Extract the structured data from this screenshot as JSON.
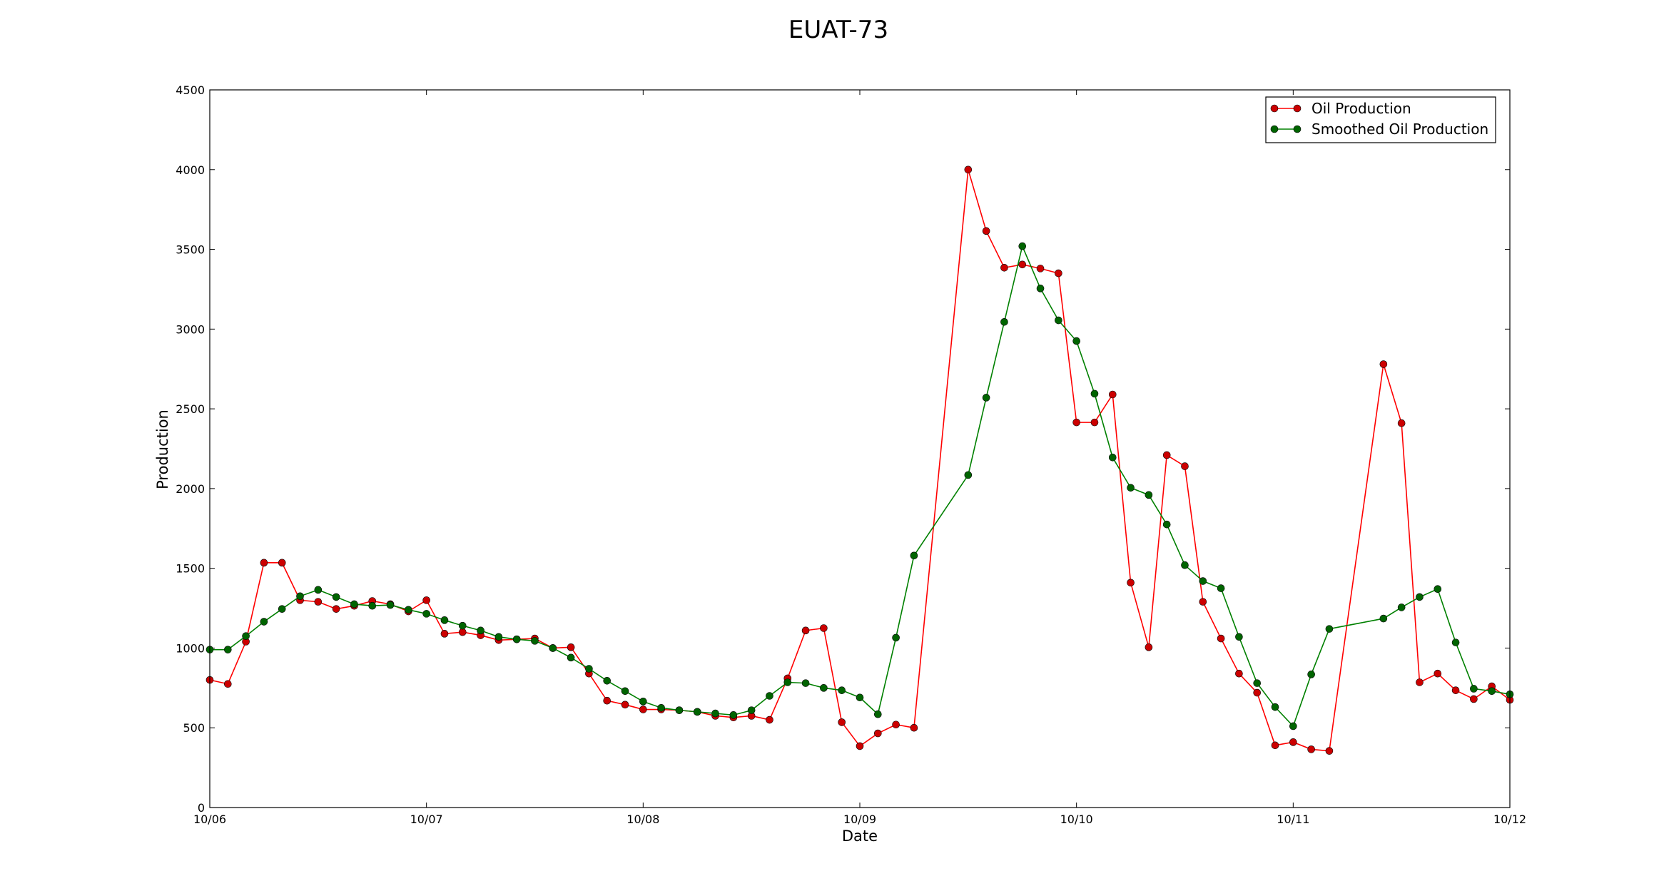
{
  "chart_data": {
    "type": "line",
    "title": "EUAT-73",
    "xlabel": "Date",
    "ylabel": "Production",
    "xlim": [
      "2014-10-06",
      "2014-10-12"
    ],
    "ylim": [
      0,
      4500
    ],
    "x_tick_labels": [
      "10/06",
      "10/07",
      "10/08",
      "10/09",
      "10/10",
      "10/11",
      "10/12"
    ],
    "y_ticks": [
      0,
      500,
      1000,
      1500,
      2000,
      2500,
      3000,
      3500,
      4000,
      4500
    ],
    "legend_position": "top-right",
    "grid": false,
    "series": [
      {
        "name": "Oil Production",
        "color": "#ff0000",
        "marker_color": "#cc0000",
        "x": [
          "2014-10-06 00:00",
          "2014-10-06 02:00",
          "2014-10-06 04:00",
          "2014-10-06 06:00",
          "2014-10-06 08:00",
          "2014-10-06 10:00",
          "2014-10-06 12:00",
          "2014-10-06 14:00",
          "2014-10-06 16:00",
          "2014-10-06 18:00",
          "2014-10-06 20:00",
          "2014-10-06 22:00",
          "2014-10-07 00:00",
          "2014-10-07 02:00",
          "2014-10-07 04:00",
          "2014-10-07 06:00",
          "2014-10-07 08:00",
          "2014-10-07 10:00",
          "2014-10-07 12:00",
          "2014-10-07 14:00",
          "2014-10-07 16:00",
          "2014-10-07 18:00",
          "2014-10-07 20:00",
          "2014-10-07 22:00",
          "2014-10-08 00:00",
          "2014-10-08 02:00",
          "2014-10-08 04:00",
          "2014-10-08 06:00",
          "2014-10-08 08:00",
          "2014-10-08 10:00",
          "2014-10-08 12:00",
          "2014-10-08 14:00",
          "2014-10-08 16:00",
          "2014-10-08 18:00",
          "2014-10-08 20:00",
          "2014-10-08 22:00",
          "2014-10-09 00:00",
          "2014-10-09 02:00",
          "2014-10-09 04:00",
          "2014-10-09 06:00",
          "2014-10-09 12:00",
          "2014-10-09 14:00",
          "2014-10-09 16:00",
          "2014-10-09 18:00",
          "2014-10-09 20:00",
          "2014-10-09 22:00",
          "2014-10-10 00:00",
          "2014-10-10 02:00",
          "2014-10-10 04:00",
          "2014-10-10 06:00",
          "2014-10-10 08:00",
          "2014-10-10 10:00",
          "2014-10-10 12:00",
          "2014-10-10 14:00",
          "2014-10-10 16:00",
          "2014-10-10 18:00",
          "2014-10-10 20:00",
          "2014-10-10 22:00",
          "2014-10-11 00:00",
          "2014-10-11 02:00",
          "2014-10-11 04:00",
          "2014-10-11 10:00",
          "2014-10-11 12:00",
          "2014-10-11 14:00",
          "2014-10-11 16:00",
          "2014-10-11 18:00",
          "2014-10-11 20:00",
          "2014-10-11 22:00",
          "2014-10-12 00:00"
        ],
        "values": [
          800,
          775,
          1040,
          1535,
          1535,
          1300,
          1290,
          1245,
          1265,
          1295,
          1275,
          1230,
          1300,
          1090,
          1100,
          1080,
          1050,
          1055,
          1060,
          1000,
          1005,
          840,
          670,
          645,
          615,
          615,
          610,
          600,
          575,
          565,
          575,
          550,
          810,
          1110,
          1125,
          535,
          385,
          465,
          520,
          500,
          4000,
          3615,
          3385,
          3405,
          3380,
          3350,
          2415,
          2415,
          2590,
          1410,
          1005,
          2210,
          2140,
          1290,
          1060,
          840,
          720,
          390,
          410,
          365,
          355,
          2780,
          2410,
          785,
          840,
          735,
          680,
          760,
          675
        ]
      },
      {
        "name": "Smoothed Oil Production",
        "color": "#008000",
        "marker_color": "#006400",
        "x": [
          "2014-10-06 00:00",
          "2014-10-06 02:00",
          "2014-10-06 04:00",
          "2014-10-06 06:00",
          "2014-10-06 08:00",
          "2014-10-06 10:00",
          "2014-10-06 12:00",
          "2014-10-06 14:00",
          "2014-10-06 16:00",
          "2014-10-06 18:00",
          "2014-10-06 20:00",
          "2014-10-06 22:00",
          "2014-10-07 00:00",
          "2014-10-07 02:00",
          "2014-10-07 04:00",
          "2014-10-07 06:00",
          "2014-10-07 08:00",
          "2014-10-07 10:00",
          "2014-10-07 12:00",
          "2014-10-07 14:00",
          "2014-10-07 16:00",
          "2014-10-07 18:00",
          "2014-10-07 20:00",
          "2014-10-07 22:00",
          "2014-10-08 00:00",
          "2014-10-08 02:00",
          "2014-10-08 04:00",
          "2014-10-08 06:00",
          "2014-10-08 08:00",
          "2014-10-08 10:00",
          "2014-10-08 12:00",
          "2014-10-08 14:00",
          "2014-10-08 16:00",
          "2014-10-08 18:00",
          "2014-10-08 20:00",
          "2014-10-08 22:00",
          "2014-10-09 00:00",
          "2014-10-09 02:00",
          "2014-10-09 04:00",
          "2014-10-09 06:00",
          "2014-10-09 12:00",
          "2014-10-09 14:00",
          "2014-10-09 16:00",
          "2014-10-09 18:00",
          "2014-10-09 20:00",
          "2014-10-09 22:00",
          "2014-10-10 00:00",
          "2014-10-10 02:00",
          "2014-10-10 04:00",
          "2014-10-10 06:00",
          "2014-10-10 08:00",
          "2014-10-10 10:00",
          "2014-10-10 12:00",
          "2014-10-10 14:00",
          "2014-10-10 16:00",
          "2014-10-10 18:00",
          "2014-10-10 20:00",
          "2014-10-10 22:00",
          "2014-10-11 00:00",
          "2014-10-11 02:00",
          "2014-10-11 04:00",
          "2014-10-11 10:00",
          "2014-10-11 12:00",
          "2014-10-11 14:00",
          "2014-10-11 16:00",
          "2014-10-11 18:00",
          "2014-10-11 20:00",
          "2014-10-11 22:00",
          "2014-10-12 00:00"
        ],
        "values": [
          990,
          990,
          1075,
          1165,
          1245,
          1325,
          1365,
          1320,
          1275,
          1265,
          1270,
          1240,
          1215,
          1175,
          1140,
          1110,
          1070,
          1055,
          1045,
          1000,
          940,
          870,
          795,
          730,
          665,
          625,
          610,
          600,
          590,
          580,
          610,
          700,
          785,
          780,
          750,
          735,
          690,
          585,
          1065,
          1580,
          2085,
          2570,
          3045,
          3520,
          3255,
          3055,
          2925,
          2595,
          2195,
          2005,
          1960,
          1775,
          1520,
          1420,
          1375,
          1070,
          780,
          630,
          510,
          835,
          1120,
          1185,
          1255,
          1320,
          1370,
          1035,
          745,
          730,
          710
        ]
      }
    ]
  }
}
